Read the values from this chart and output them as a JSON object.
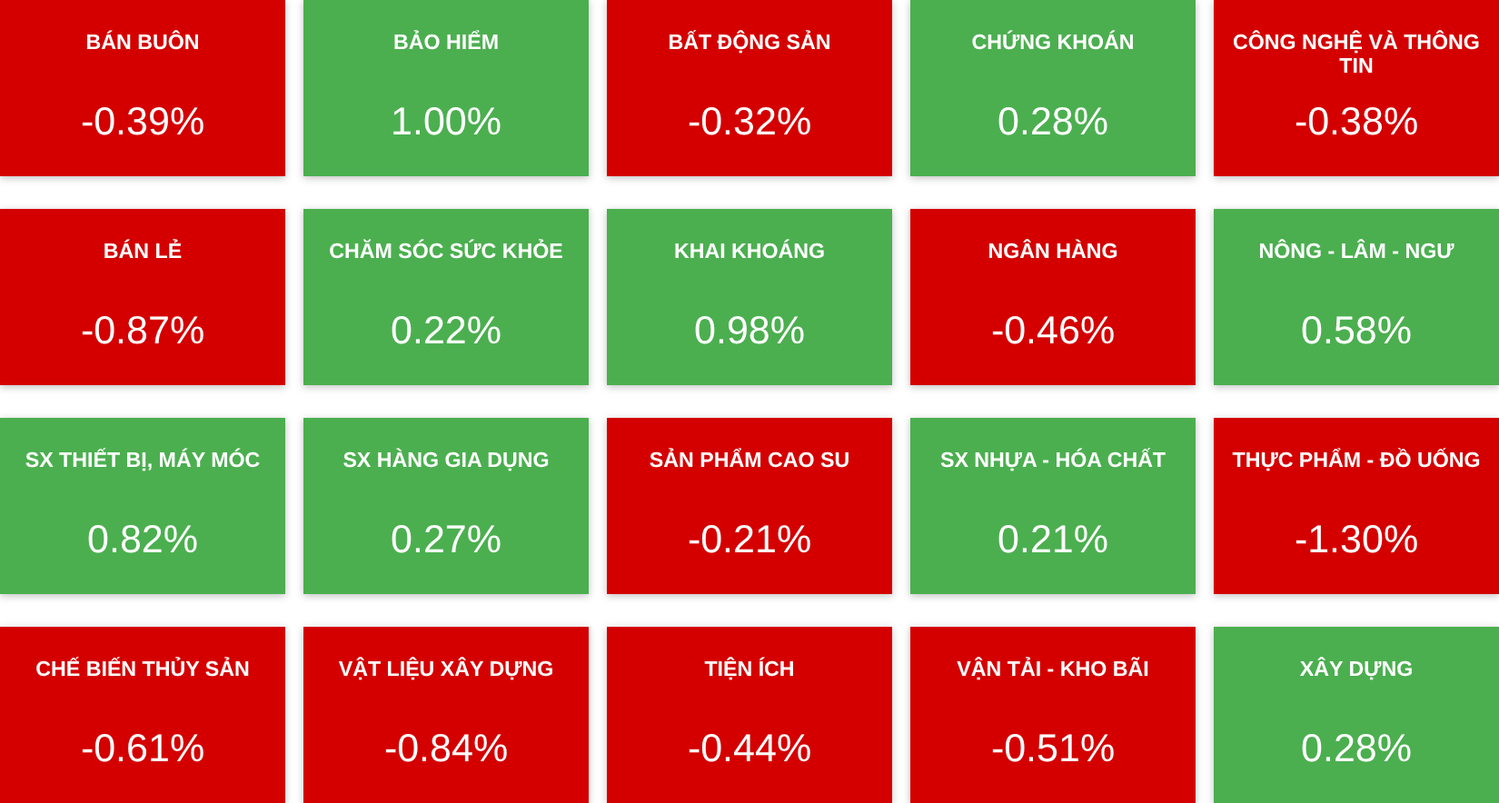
{
  "chart_data": {
    "type": "other",
    "categories": [
      "BÁN BUÔN",
      "BẢO HIỂM",
      "BẤT ĐỘNG SẢN",
      "CHỨNG KHOÁN",
      "CÔNG NGHỆ VÀ THÔNG TIN",
      "BÁN LẺ",
      "CHĂM SÓC SỨC KHỎE",
      "KHAI KHOÁNG",
      "NGÂN HÀNG",
      "NÔNG - LÂM - NGƯ",
      "SX THIẾT BỊ, MÁY MÓC",
      "SX HÀNG GIA DỤNG",
      "SẢN PHẨM CAO SU",
      "SX NHỰA - HÓA CHẤT",
      "THỰC PHẨM - ĐỒ UỐNG",
      "CHẾ BIẾN THỦY SẢN",
      "VẬT LIỆU XÂY DỰNG",
      "TIỆN ÍCH",
      "VẬN TẢI - KHO BÃI",
      "XÂY DỰNG"
    ],
    "values": [
      -0.39,
      1.0,
      -0.32,
      0.28,
      -0.38,
      -0.87,
      0.22,
      0.98,
      -0.46,
      0.58,
      0.82,
      0.27,
      -0.21,
      0.21,
      -1.3,
      -0.61,
      -0.84,
      -0.44,
      -0.51,
      0.28
    ],
    "value_labels": [
      "-0.39%",
      "1.00%",
      "-0.32%",
      "0.28%",
      "-0.38%",
      "-0.87%",
      "0.22%",
      "0.98%",
      "-0.46%",
      "0.58%",
      "0.82%",
      "0.27%",
      "-0.21%",
      "0.21%",
      "-1.30%",
      "-0.61%",
      "-0.84%",
      "-0.44%",
      "-0.51%",
      "0.28%"
    ],
    "colors": [
      "#d40000",
      "#4caf50",
      "#d40000",
      "#4caf50",
      "#d40000",
      "#d40000",
      "#4caf50",
      "#4caf50",
      "#d40000",
      "#4caf50",
      "#4caf50",
      "#4caf50",
      "#d40000",
      "#4caf50",
      "#d40000",
      "#d40000",
      "#d40000",
      "#d40000",
      "#d40000",
      "#4caf50"
    ]
  }
}
